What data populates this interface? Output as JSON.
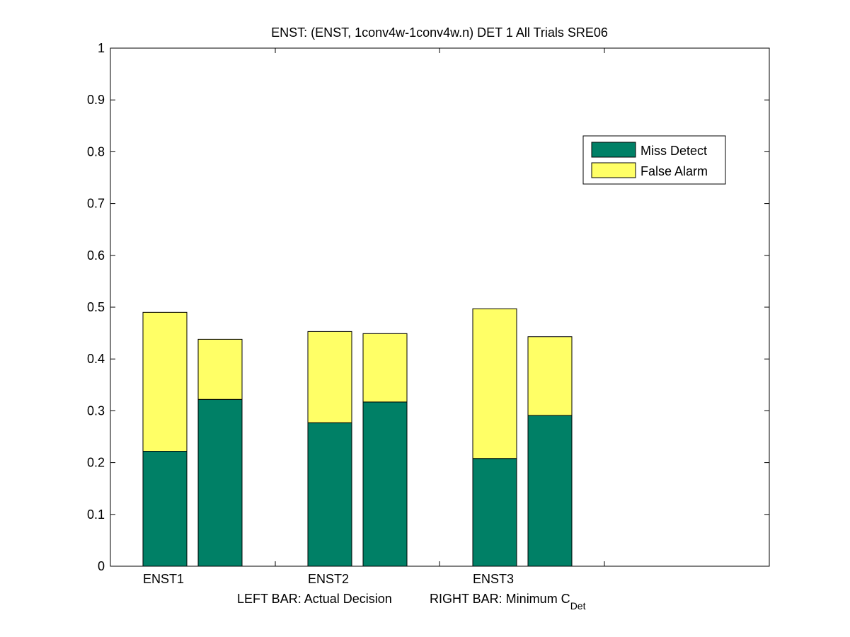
{
  "chart_data": {
    "type": "bar",
    "stacked": true,
    "title": "ENST: (ENST, 1conv4w-1conv4w.n) DET 1 All Trials SRE06",
    "categories": [
      "ENST1",
      "ENST2",
      "ENST3"
    ],
    "bars_per_category": [
      "LEFT",
      "RIGHT"
    ],
    "series": [
      {
        "name": "Miss Detect",
        "color": "#008066",
        "values": [
          [
            0.222,
            0.322
          ],
          [
            0.277,
            0.317
          ],
          [
            0.208,
            0.291
          ]
        ]
      },
      {
        "name": "False Alarm",
        "color": "#ffff66",
        "values": [
          [
            0.268,
            0.116
          ],
          [
            0.176,
            0.132
          ],
          [
            0.289,
            0.152
          ]
        ]
      }
    ],
    "xlabel": {
      "left": "LEFT BAR: Actual Decision",
      "right_main": "RIGHT BAR: Minimum C",
      "right_sub": "Det"
    },
    "ylabel": "",
    "ylim": [
      0,
      1
    ],
    "yticks": [
      0,
      0.1,
      0.2,
      0.3,
      0.4,
      0.5,
      0.6,
      0.7,
      0.8,
      0.9,
      1
    ],
    "ytick_labels": [
      "0",
      "0.1",
      "0.2",
      "0.3",
      "0.4",
      "0.5",
      "0.6",
      "0.7",
      "0.8",
      "0.9",
      "1"
    ],
    "legend_position": "top-right",
    "grid": false
  }
}
